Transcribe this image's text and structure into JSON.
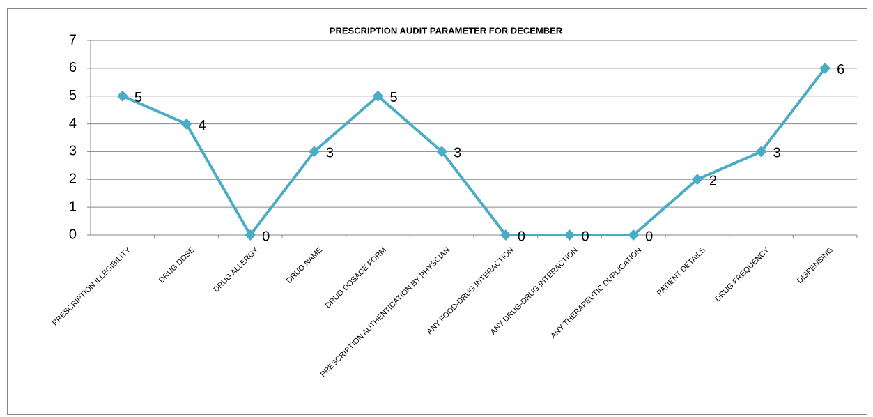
{
  "chart_data": {
    "type": "line",
    "title": "PRESCRIPTION AUDIT PARAMETER FOR  DECEMBER",
    "categories": [
      "PRESCRIPTION ILLEGIBILITY",
      "DRUG DOSE",
      "DRUG ALLERGY",
      "DRUG NAME",
      "DRUG DOSAGE FORM",
      "PRESCRIPTION AUTHENTICATION BY PHYSCIAN",
      "ANY FOOD-DRUG INTERACTION",
      "ANY DRUG-DRUG INTERACTION",
      "ANY THERAPEUTIC DUPLICATION",
      "PATIENT DETAILS",
      "DRUG FREQUENCY",
      "DISPENSING"
    ],
    "series": [
      {
        "name": "Series1",
        "color": "#4bacc6",
        "values": [
          5,
          4,
          0,
          3,
          5,
          3,
          0,
          0,
          0,
          2,
          3,
          6
        ]
      }
    ],
    "ylim": [
      0,
      7
    ],
    "yticks": [
      0,
      1,
      2,
      3,
      4,
      5,
      6,
      7
    ],
    "grid": true
  }
}
